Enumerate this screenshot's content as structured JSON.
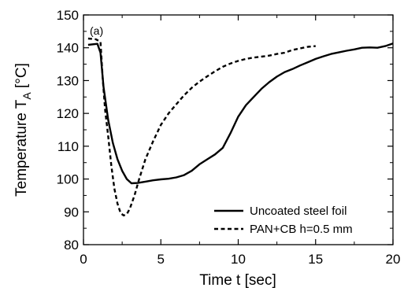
{
  "chart_data": {
    "type": "line",
    "panel_label": "(a)",
    "xlabel": "Time t [sec]",
    "ylabel": {
      "main": "Temperature T",
      "subscript": "A",
      "suffix": " [°C]"
    },
    "xlim": [
      0,
      20
    ],
    "ylim": [
      80,
      150
    ],
    "x_ticks": [
      0,
      5,
      10,
      15,
      20
    ],
    "y_ticks": [
      80,
      90,
      100,
      110,
      120,
      130,
      140,
      150
    ],
    "x_tick_labels": [
      "0",
      "5",
      "10",
      "15",
      "20"
    ],
    "y_tick_labels": [
      "80",
      "90",
      "100",
      "110",
      "120",
      "130",
      "140",
      "150"
    ],
    "grid": false,
    "legend_position": "bottom-right",
    "series": [
      {
        "name": "Uncoated steel foil",
        "style": "solid",
        "color": "#000000",
        "points": [
          [
            0.3,
            140.9
          ],
          [
            0.9,
            141.2
          ],
          [
            1.1,
            138.5
          ],
          [
            1.3,
            128
          ],
          [
            1.6,
            118
          ],
          [
            1.9,
            111
          ],
          [
            2.2,
            106
          ],
          [
            2.5,
            102.5
          ],
          [
            2.8,
            100
          ],
          [
            3.1,
            98.7
          ],
          [
            3.5,
            98.8
          ],
          [
            4.0,
            99.2
          ],
          [
            4.5,
            99.6
          ],
          [
            5.0,
            99.9
          ],
          [
            5.5,
            100.1
          ],
          [
            6.0,
            100.5
          ],
          [
            6.5,
            101.2
          ],
          [
            7.0,
            102.5
          ],
          [
            7.5,
            104.5
          ],
          [
            8.0,
            106
          ],
          [
            8.5,
            107.5
          ],
          [
            9.0,
            109.5
          ],
          [
            9.5,
            114
          ],
          [
            10.0,
            119
          ],
          [
            10.5,
            122.5
          ],
          [
            11.0,
            125
          ],
          [
            11.5,
            127.5
          ],
          [
            12.0,
            129.5
          ],
          [
            12.5,
            131.2
          ],
          [
            13.0,
            132.6
          ],
          [
            13.5,
            133.5
          ],
          [
            14.0,
            134.6
          ],
          [
            14.5,
            135.6
          ],
          [
            15.0,
            136.6
          ],
          [
            15.5,
            137.4
          ],
          [
            16.0,
            138.1
          ],
          [
            16.5,
            138.6
          ],
          [
            17.0,
            139.1
          ],
          [
            17.5,
            139.5
          ],
          [
            18.0,
            140.0
          ],
          [
            18.5,
            140.1
          ],
          [
            19.0,
            140.0
          ],
          [
            19.5,
            140.5
          ],
          [
            20.0,
            141.3
          ]
        ]
      },
      {
        "name": "PAN+CB h=0.5 mm",
        "style": "dashed",
        "color": "#000000",
        "points": [
          [
            0.3,
            142.8
          ],
          [
            0.8,
            142.6
          ],
          [
            1.1,
            141.8
          ],
          [
            1.25,
            130
          ],
          [
            1.4,
            121
          ],
          [
            1.6,
            113
          ],
          [
            1.8,
            104
          ],
          [
            2.0,
            97
          ],
          [
            2.2,
            92.5
          ],
          [
            2.4,
            89.6
          ],
          [
            2.6,
            88.9
          ],
          [
            2.8,
            89.3
          ],
          [
            3.0,
            91
          ],
          [
            3.3,
            95
          ],
          [
            3.6,
            100
          ],
          [
            4.0,
            106
          ],
          [
            4.5,
            111.5
          ],
          [
            5.0,
            116.5
          ],
          [
            5.5,
            120
          ],
          [
            6.0,
            122.8
          ],
          [
            6.5,
            125.5
          ],
          [
            7.0,
            127.8
          ],
          [
            7.5,
            129.7
          ],
          [
            8.0,
            131.3
          ],
          [
            8.5,
            132.8
          ],
          [
            9.0,
            134.2
          ],
          [
            9.5,
            135.2
          ],
          [
            10.0,
            136
          ],
          [
            10.5,
            136.6
          ],
          [
            11.0,
            137
          ],
          [
            11.5,
            137.3
          ],
          [
            12.0,
            137.6
          ],
          [
            12.5,
            138.1
          ],
          [
            13.0,
            138.5
          ],
          [
            13.5,
            139.3
          ],
          [
            14.0,
            139.8
          ],
          [
            14.5,
            140.3
          ],
          [
            15.0,
            140.5
          ]
        ]
      }
    ]
  }
}
